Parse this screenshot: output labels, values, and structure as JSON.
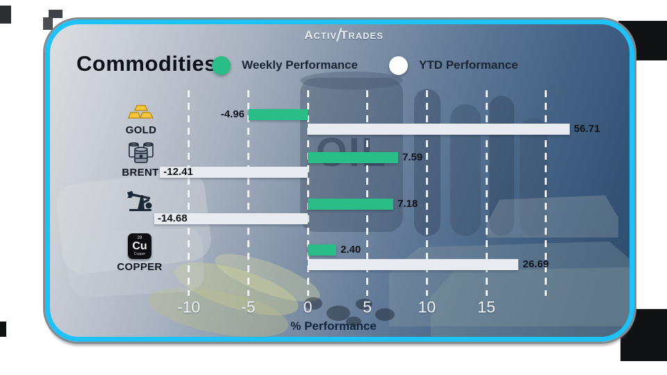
{
  "brand": {
    "logo_parts": {
      "a": "A",
      "ctiv": "CTIV",
      "t": "T",
      "rades": "RADES"
    }
  },
  "header": {
    "title": "Commodities",
    "legend": [
      {
        "label": "Weekly Performance",
        "color": "#2abd88"
      },
      {
        "label": "YTD Performance",
        "color": "#ffffff"
      }
    ]
  },
  "chart_data": {
    "type": "bar",
    "orientation": "horizontal",
    "xlabel": "% Performance",
    "x_ticks": [
      -10,
      -5,
      0,
      5,
      10,
      15
    ],
    "x_gridlines": [
      -10,
      -5,
      0,
      5,
      10,
      15,
      20
    ],
    "grid": "vertical-dashed-white",
    "legend_position": "top",
    "series": [
      {
        "name": "Weekly Performance",
        "color": "#2abd88"
      },
      {
        "name": "YTD Performance",
        "color": "#e8ebef"
      }
    ],
    "rows": [
      {
        "commodity": "GOLD",
        "icon": "gold-bars-icon",
        "weekly": -4.96,
        "ytd": 56.71,
        "ytd_drawn_units": 22.0
      },
      {
        "commodity": "BRENT",
        "icon": "oil-barrels-icon",
        "weekly": 7.59,
        "ytd": -12.41
      },
      {
        "commodity": "",
        "icon": "oil-pumpjack-icon",
        "weekly": 7.18,
        "ytd": -14.68
      },
      {
        "commodity": "COPPER",
        "icon": "copper-element-icon",
        "weekly": 2.4,
        "ytd": 26.69,
        "ytd_drawn_units": 17.7
      }
    ]
  },
  "copper_tile": {
    "number": "29",
    "symbol": "Cu",
    "name": "Copper"
  },
  "background_art": {
    "oil_text": "OIL"
  },
  "colors": {
    "accent_border": "#1ec1f8",
    "weekly_green": "#2abd88",
    "ytd_white": "#e8ebef",
    "tick_text": "#eef2f7"
  }
}
